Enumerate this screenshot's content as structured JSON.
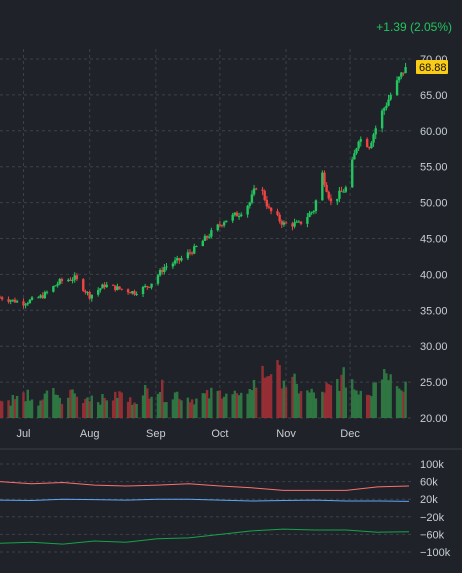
{
  "header": {
    "change_text": "+1.39 (2.05%)"
  },
  "colors": {
    "background": "#1f2329",
    "up": "#22c55e",
    "down": "#ef4444",
    "grid": "#3b414a",
    "axis_text": "#c7cdd4",
    "last_price_bg": "#facc15",
    "indicator_red": "#f87171",
    "indicator_blue": "#60a5fa",
    "indicator_green": "#16a34a"
  },
  "chart_data": [
    {
      "type": "candlestick",
      "title": "",
      "y_axis": {
        "ticks": [
          "70.00",
          "65.00",
          "60.00",
          "55.00",
          "50.00",
          "45.00",
          "40.00",
          "35.00",
          "30.00",
          "25.00",
          "20.00"
        ],
        "ylim": [
          20,
          70
        ]
      },
      "x_axis": {
        "ticks": [
          "Jul",
          "Aug",
          "Sep",
          "Oct",
          "Nov",
          "Dec"
        ]
      },
      "last_price_label": "68.88",
      "grid": true,
      "price_path": [
        [
          "Jun 20",
          36.8
        ],
        [
          "Jul 1",
          36.0
        ],
        [
          "Jul 10",
          37.0
        ],
        [
          "Jul 18",
          39.0
        ],
        [
          "Jul 25",
          39.5
        ],
        [
          "Aug 1",
          37.0
        ],
        [
          "Aug 8",
          38.5
        ],
        [
          "Aug 15",
          38.0
        ],
        [
          "Aug 22",
          37.5
        ],
        [
          "Aug 29",
          38.5
        ],
        [
          "Sep 5",
          41.0
        ],
        [
          "Sep 12",
          42.0
        ],
        [
          "Sep 19",
          43.5
        ],
        [
          "Sep 26",
          45.5
        ],
        [
          "Oct 3",
          47.5
        ],
        [
          "Oct 10",
          48.5
        ],
        [
          "Oct 15",
          50.0
        ],
        [
          "Oct 19",
          53.0
        ],
        [
          "Oct 24",
          49.0
        ],
        [
          "Oct 31",
          47.0
        ],
        [
          "Nov 7",
          47.0
        ],
        [
          "Nov 14",
          49.0
        ],
        [
          "Nov 18",
          54.0
        ],
        [
          "Nov 22",
          50.0
        ],
        [
          "Nov 29",
          52.0
        ],
        [
          "Dec 5",
          59.0
        ],
        [
          "Dec 10",
          58.0
        ],
        [
          "Dec 15",
          62.0
        ],
        [
          "Dec 20",
          65.0
        ],
        [
          "Dec 27",
          68.88
        ]
      ],
      "volume_levels": [
        0.35,
        0.4,
        0.45,
        0.3,
        0.4,
        0.5,
        0.35,
        0.55,
        0.4,
        0.45,
        0.38,
        0.42,
        0.48,
        0.35,
        0.4,
        0.55,
        0.6,
        0.45,
        0.5,
        0.42,
        0.38,
        0.45,
        0.5,
        0.55,
        0.48,
        0.4,
        0.7,
        0.9,
        1.0,
        0.85,
        0.7,
        0.6,
        0.5,
        0.45,
        0.6,
        0.75,
        0.8,
        0.6,
        0.55,
        0.9,
        1.0,
        0.8,
        0.7
      ]
    },
    {
      "type": "line",
      "title": "",
      "y_axis": {
        "ticks": [
          "100k",
          "60k",
          "20k",
          "−20k",
          "−60k",
          "−100k"
        ],
        "ylim": [
          -100000,
          100000
        ]
      },
      "series": [
        {
          "values": [
            60000,
            55000,
            58000,
            52000,
            50000,
            52000,
            55000,
            50000,
            46000,
            40000,
            40000,
            40000,
            48000,
            50000
          ]
        },
        {
          "values": [
            18000,
            17000,
            20000,
            19000,
            18000,
            20000,
            20000,
            18000,
            16000,
            17000,
            18000,
            16000,
            16000,
            15000
          ]
        },
        {
          "values": [
            -80000,
            -78000,
            -82000,
            -75000,
            -78000,
            -70000,
            -68000,
            -60000,
            -52000,
            -48000,
            -50000,
            -50000,
            -55000,
            -54000
          ]
        }
      ]
    }
  ]
}
